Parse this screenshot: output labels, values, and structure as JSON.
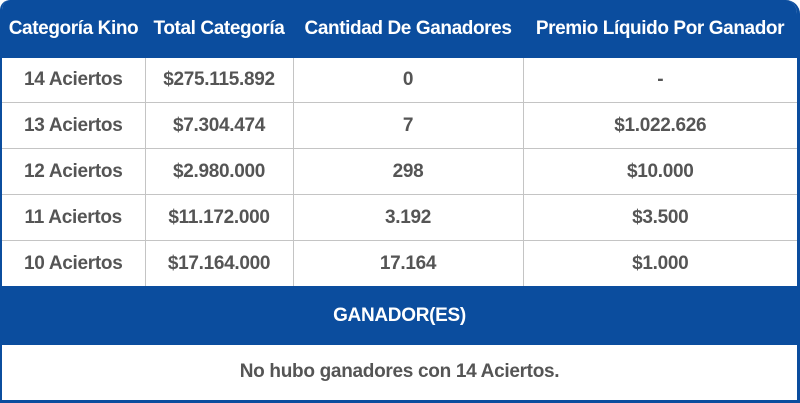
{
  "colors": {
    "header_blue": "#0b4d9e",
    "cell_text": "#555555",
    "grid_line": "#c4c4c4",
    "header_text": "#ffffff"
  },
  "table": {
    "headers": [
      "Categoría Kino",
      "Total Categoría",
      "Cantidad De Ganadores",
      "Premio Líquido Por Ganador"
    ],
    "rows": [
      {
        "categoria": "14 Aciertos",
        "total": "$275.115.892",
        "ganadores": "0",
        "premio": "-"
      },
      {
        "categoria": "13 Aciertos",
        "total": "$7.304.474",
        "ganadores": "7",
        "premio": "$1.022.626"
      },
      {
        "categoria": "12 Aciertos",
        "total": "$2.980.000",
        "ganadores": "298",
        "premio": "$10.000"
      },
      {
        "categoria": "11 Aciertos",
        "total": "$11.172.000",
        "ganadores": "3.192",
        "premio": "$3.500"
      },
      {
        "categoria": "10 Aciertos",
        "total": "$17.164.000",
        "ganadores": "17.164",
        "premio": "$1.000"
      }
    ]
  },
  "winners": {
    "title": "GANADOR(ES)",
    "message": "No hubo ganadores con 14 Aciertos."
  }
}
